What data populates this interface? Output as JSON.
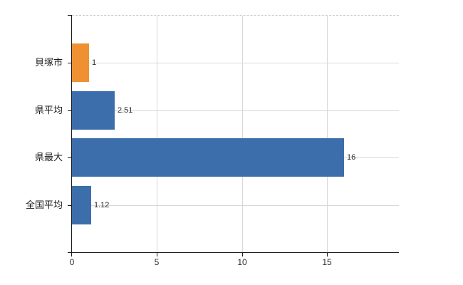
{
  "chart_data": {
    "type": "bar",
    "orientation": "horizontal",
    "title": "",
    "categories": [
      "貝塚市",
      "県平均",
      "県最大",
      "全国平均"
    ],
    "values": [
      1,
      2.51,
      16,
      1.12
    ],
    "value_labels": [
      "1",
      "2.51",
      "16",
      "1.12"
    ],
    "bar_colors": [
      "#EF9133",
      "#3C6EAC",
      "#3C6EAC",
      "#3C6EAC"
    ],
    "x_tick_values": [
      0,
      5,
      10,
      15
    ],
    "x_tick_labels": [
      "0",
      "5",
      "10",
      "15"
    ],
    "xlim": [
      0,
      19.23
    ],
    "grid": true,
    "legend": false
  },
  "colors": {
    "background": "#ffffff",
    "axis": "#1a1a1a",
    "gridline": "#d6dad6",
    "top_border_dashed": "#c9c9c9",
    "category_label": "#1a1a1a",
    "value_label": "#2b2b2b",
    "tick_label": "#2b2b2b",
    "highlight_bar": "#EF9133",
    "default_bar": "#3C6EAC"
  }
}
